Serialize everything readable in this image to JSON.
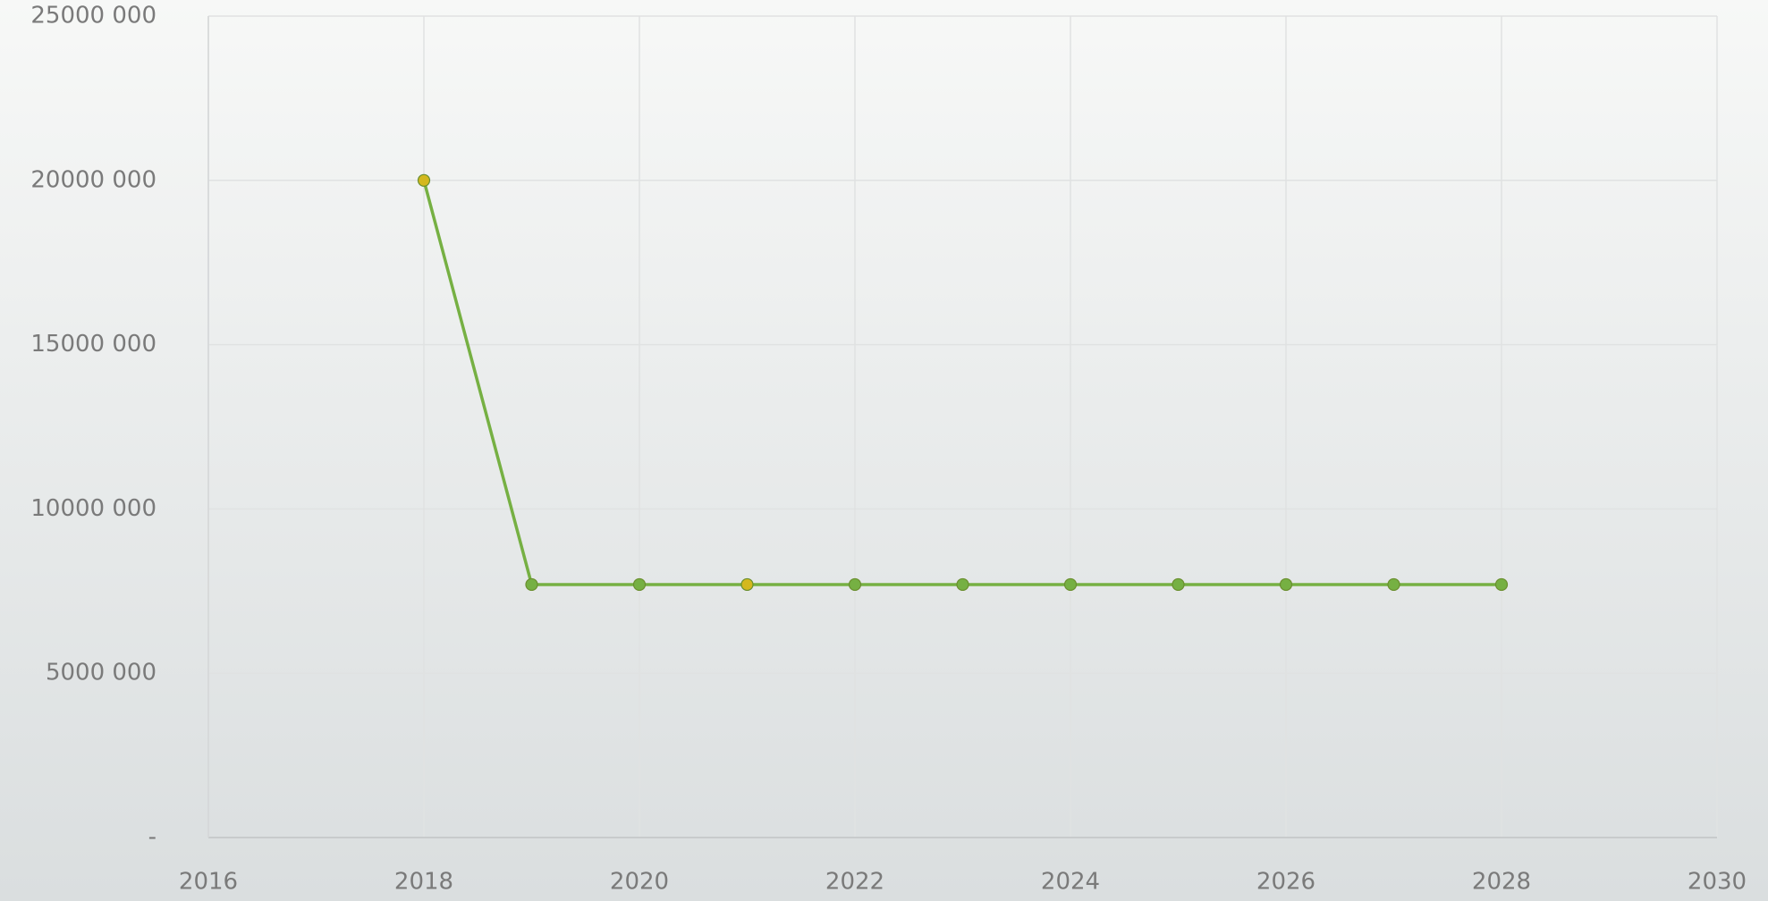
{
  "chart_data": {
    "type": "line",
    "x": [
      2018,
      2019,
      2020,
      2021,
      2022,
      2023,
      2024,
      2025,
      2026,
      2027,
      2028
    ],
    "series": [
      {
        "color": "#76b043",
        "marker_colors": [
          "#d4b81e",
          "#76b043",
          "#76b043",
          "#d4b81e",
          "#76b043",
          "#76b043",
          "#76b043",
          "#76b043",
          "#76b043",
          "#76b043",
          "#76b043"
        ],
        "values": [
          20000000,
          7700000,
          7700000,
          7700000,
          7700000,
          7700000,
          7700000,
          7700000,
          7700000,
          7700000,
          7700000
        ]
      }
    ],
    "xlim": [
      2016,
      2030
    ],
    "xticks": [
      2016,
      2018,
      2020,
      2022,
      2024,
      2026,
      2028,
      2030
    ],
    "ylim": [
      0,
      25000000
    ],
    "yticks": [
      {
        "value": 0,
        "label": "-"
      },
      {
        "value": 5000000,
        "label": "5000 000"
      },
      {
        "value": 10000000,
        "label": "10000 000"
      },
      {
        "value": 15000000,
        "label": "15000 000"
      },
      {
        "value": 20000000,
        "label": "20000 000"
      },
      {
        "value": 25000000,
        "label": "25000 000"
      }
    ],
    "grid": true
  }
}
